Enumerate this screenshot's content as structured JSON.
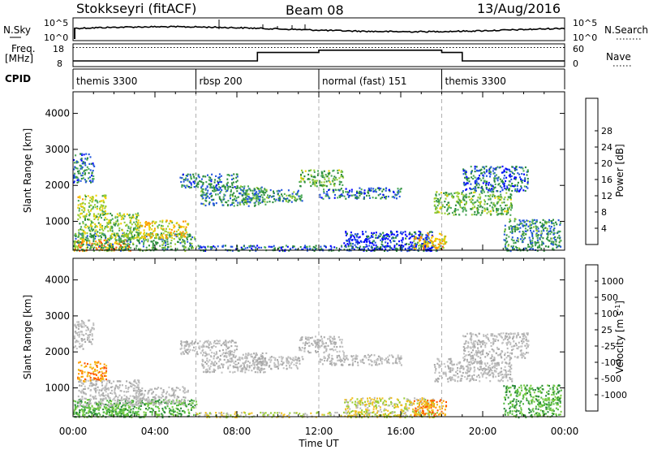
{
  "header": {
    "station": "Stokkseyri (fitACF)",
    "beam": "Beam 08",
    "date": "13/Aug/2016"
  },
  "noise_panel": {
    "left_label": "N.Sky",
    "right_label": "N.Search",
    "left_ticks": [
      "10^5",
      "10^0"
    ],
    "right_ticks": [
      "10^5",
      "10^0"
    ]
  },
  "freq_panel": {
    "left_label_1": "Freq.",
    "left_label_2": "[MHz]",
    "right_label": "Nave",
    "left_ticks": [
      "18",
      "8"
    ],
    "right_ticks": [
      "60",
      "0"
    ],
    "freq_steps": [
      {
        "from": 0,
        "to": 9,
        "level": 0.25
      },
      {
        "from": 9,
        "to": 12,
        "level": 0.62
      },
      {
        "from": 12,
        "to": 18,
        "level": 0.72
      },
      {
        "from": 18,
        "to": 19,
        "level": 0.62
      },
      {
        "from": 19,
        "to": 24,
        "level": 0.25
      }
    ],
    "nave_level": 0.84
  },
  "cpid": {
    "label": "CPID",
    "segments": [
      {
        "start": 0,
        "text": "themis 3300"
      },
      {
        "start": 6,
        "text": "rbsp 200"
      },
      {
        "start": 12,
        "text": "normal (fast) 151"
      },
      {
        "start": 18,
        "text": "themis 3300"
      }
    ]
  },
  "chart_data": [
    {
      "type": "heatmap",
      "name": "power",
      "ylabel": "Slant Range [km]",
      "xlabel": "",
      "x_range_hours": [
        0,
        24
      ],
      "ylim": [
        200,
        4600
      ],
      "y_ticks": [
        "1000",
        "2000",
        "3000",
        "4000"
      ],
      "colorbar": {
        "label": "Power [dB]",
        "ticks": [
          "4",
          "8",
          "12",
          "16",
          "20",
          "24",
          "28"
        ],
        "colors": [
          "#0000ff",
          "#2255dd",
          "#2a8a3a",
          "#4aa858",
          "#9acd32",
          "#f0d000",
          "#ff9900",
          "#ff5500",
          "#ff0000"
        ]
      },
      "echo_regions": [
        {
          "x0": 0.0,
          "x1": 2.8,
          "y0": 200,
          "y1": 500,
          "level": 0.72
        },
        {
          "x0": 0.0,
          "x1": 6.0,
          "y0": 200,
          "y1": 700,
          "level": 0.35
        },
        {
          "x0": 0.2,
          "x1": 3.2,
          "y0": 500,
          "y1": 1250,
          "level": 0.45
        },
        {
          "x0": 0.2,
          "x1": 1.6,
          "y0": 1200,
          "y1": 1750,
          "level": 0.5
        },
        {
          "x0": 3.0,
          "x1": 5.6,
          "y0": 550,
          "y1": 1050,
          "level": 0.6
        },
        {
          "x0": 5.2,
          "x1": 8.0,
          "y0": 1950,
          "y1": 2350,
          "level": 0.25
        },
        {
          "x0": 6.2,
          "x1": 9.4,
          "y0": 1450,
          "y1": 2000,
          "level": 0.3
        },
        {
          "x0": 8.2,
          "x1": 11.2,
          "y0": 1550,
          "y1": 1900,
          "level": 0.3
        },
        {
          "x0": 11.0,
          "x1": 13.2,
          "y0": 2000,
          "y1": 2450,
          "level": 0.4
        },
        {
          "x0": 12.0,
          "x1": 16.0,
          "y0": 1650,
          "y1": 1950,
          "level": 0.25
        },
        {
          "x0": 6.0,
          "x1": 18.0,
          "y0": 200,
          "y1": 350,
          "level": 0.2
        },
        {
          "x0": 13.2,
          "x1": 17.6,
          "y0": 200,
          "y1": 750,
          "level": 0.15
        },
        {
          "x0": 16.6,
          "x1": 18.2,
          "y0": 250,
          "y1": 700,
          "level": 0.65
        },
        {
          "x0": 17.6,
          "x1": 21.4,
          "y0": 1200,
          "y1": 1850,
          "level": 0.4
        },
        {
          "x0": 19.0,
          "x1": 22.2,
          "y0": 1850,
          "y1": 2550,
          "level": 0.22
        },
        {
          "x0": 21.0,
          "x1": 23.8,
          "y0": 200,
          "y1": 1100,
          "level": 0.3
        },
        {
          "x0": 0.0,
          "x1": 1.0,
          "y0": 2100,
          "y1": 2900,
          "level": 0.25
        }
      ]
    },
    {
      "type": "heatmap",
      "name": "velocity",
      "ylabel": "Slant Range [km]",
      "xlabel": "Time UT",
      "x_range_hours": [
        0,
        24
      ],
      "x_ticks": [
        "00:00",
        "04:00",
        "08:00",
        "12:00",
        "16:00",
        "20:00",
        "00:00"
      ],
      "ylim": [
        200,
        4600
      ],
      "y_ticks": [
        "1000",
        "2000",
        "3000",
        "4000"
      ],
      "colorbar": {
        "label": "Velocity [m s",
        "label_sup": "-1",
        "label_end": "]",
        "ticks": [
          "1000",
          "500",
          "100",
          "25",
          "-25",
          "-100",
          "-500",
          "-1000"
        ],
        "colors": [
          "#1030c0",
          "#3060c8",
          "#2a8a3a",
          "#55bb44",
          "#bbbbbb",
          "#f0c020",
          "#ff9900",
          "#ff5500",
          "#ff0000"
        ]
      },
      "echo_regions": [
        {
          "x0": 0.0,
          "x1": 2.8,
          "y0": 200,
          "y1": 500,
          "class": "green"
        },
        {
          "x0": 0.0,
          "x1": 6.0,
          "y0": 200,
          "y1": 700,
          "class": "green"
        },
        {
          "x0": 0.2,
          "x1": 3.2,
          "y0": 500,
          "y1": 1250,
          "class": "gray"
        },
        {
          "x0": 0.2,
          "x1": 1.6,
          "y0": 1200,
          "y1": 1750,
          "class": "orange"
        },
        {
          "x0": 3.0,
          "x1": 5.6,
          "y0": 550,
          "y1": 1050,
          "class": "gray"
        },
        {
          "x0": 5.2,
          "x1": 8.0,
          "y0": 1950,
          "y1": 2350,
          "class": "gray"
        },
        {
          "x0": 6.2,
          "x1": 9.4,
          "y0": 1450,
          "y1": 2000,
          "class": "gray"
        },
        {
          "x0": 8.2,
          "x1": 11.2,
          "y0": 1550,
          "y1": 1900,
          "class": "gray"
        },
        {
          "x0": 11.0,
          "x1": 13.2,
          "y0": 2000,
          "y1": 2450,
          "class": "gray"
        },
        {
          "x0": 12.0,
          "x1": 16.0,
          "y0": 1650,
          "y1": 1950,
          "class": "gray"
        },
        {
          "x0": 6.0,
          "x1": 18.0,
          "y0": 200,
          "y1": 350,
          "class": "yellow"
        },
        {
          "x0": 13.2,
          "x1": 17.6,
          "y0": 200,
          "y1": 750,
          "class": "yellow"
        },
        {
          "x0": 16.6,
          "x1": 18.2,
          "y0": 250,
          "y1": 700,
          "class": "orange"
        },
        {
          "x0": 17.6,
          "x1": 21.4,
          "y0": 1200,
          "y1": 1850,
          "class": "gray"
        },
        {
          "x0": 19.0,
          "x1": 22.2,
          "y0": 1850,
          "y1": 2550,
          "class": "gray"
        },
        {
          "x0": 21.0,
          "x1": 23.8,
          "y0": 200,
          "y1": 1100,
          "class": "green"
        },
        {
          "x0": 0.0,
          "x1": 1.0,
          "y0": 2100,
          "y1": 2900,
          "class": "gray"
        }
      ]
    }
  ]
}
